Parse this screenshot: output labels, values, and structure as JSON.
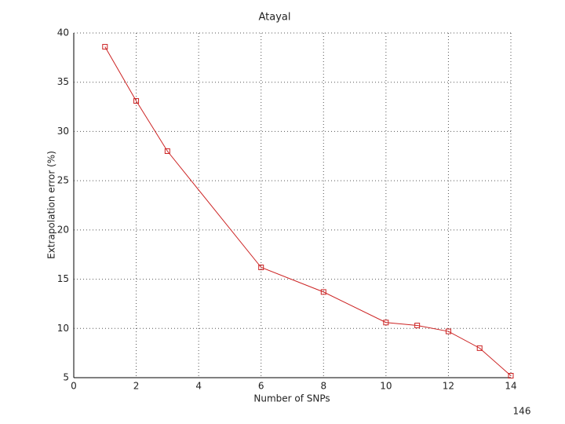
{
  "chart_data": {
    "type": "line",
    "title": "Atayal",
    "xlabel": "Number of SNPs",
    "ylabel": "Extrapolation error (%)",
    "x": [
      1,
      2,
      3,
      6,
      8,
      10,
      11,
      12,
      13,
      14
    ],
    "series": [
      {
        "name": "Atayal",
        "color": "#cc2222",
        "values": [
          38.6,
          33.1,
          28.0,
          16.2,
          13.7,
          10.6,
          10.3,
          9.7,
          8.0,
          5.2
        ]
      }
    ],
    "xlim": [
      0,
      14
    ],
    "xticks": [
      0,
      2,
      4,
      6,
      8,
      10,
      12,
      14
    ],
    "ylim": [
      5,
      40
    ],
    "yticks": [
      5,
      10,
      15,
      20,
      25,
      30,
      35,
      40
    ],
    "grid": true
  },
  "slide_number": "146"
}
